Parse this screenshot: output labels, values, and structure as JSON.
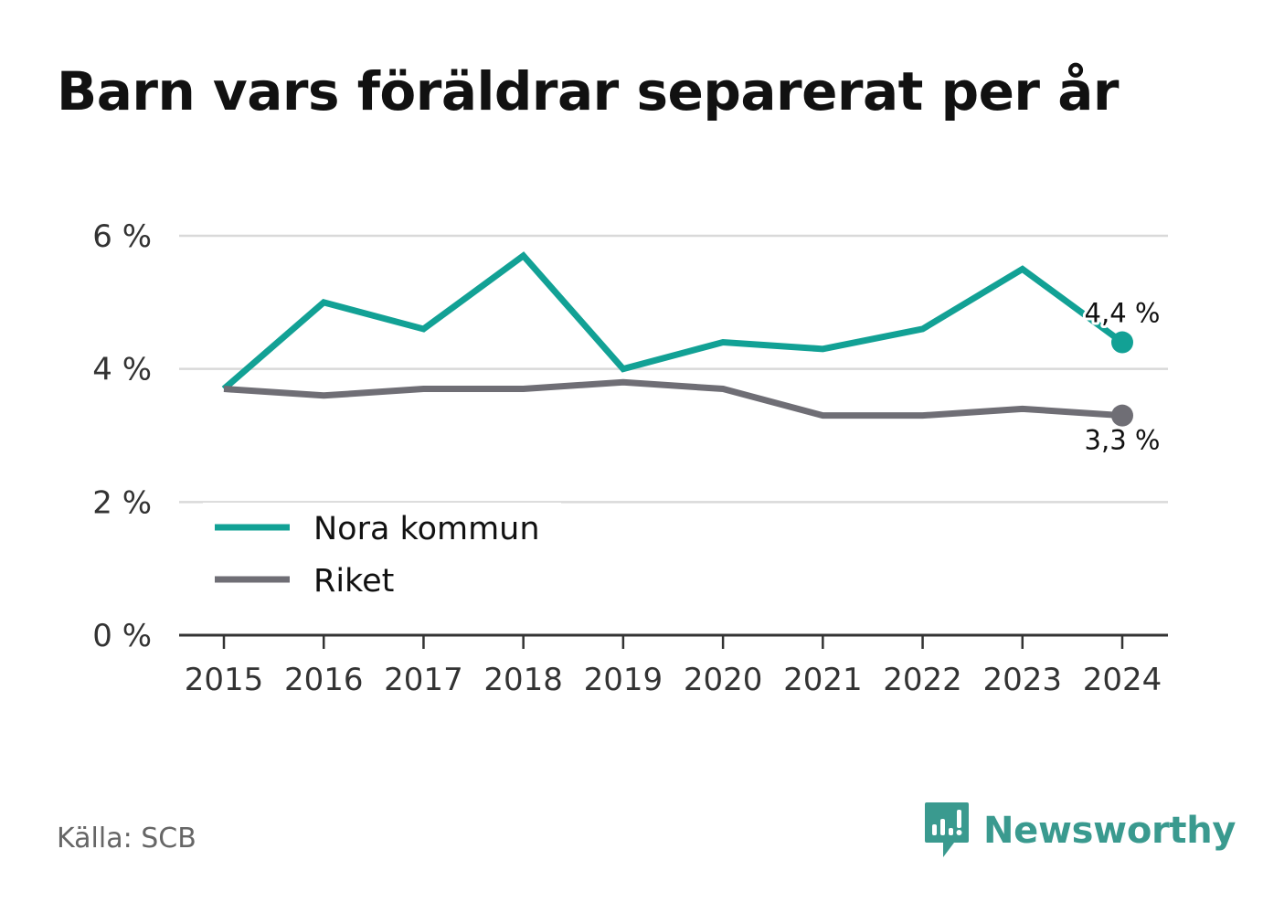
{
  "title": "Barn vars föräldrar separerat per år",
  "source": "Källa: SCB",
  "brand": {
    "name": "Newsworthy",
    "logo_icon": "newsworthy-logo-icon",
    "color": "#3a9a8f"
  },
  "chart_data": {
    "type": "line",
    "title": "Barn vars föräldrar separerat per år",
    "xlabel": "",
    "ylabel": "",
    "x": [
      "2015",
      "2016",
      "2017",
      "2018",
      "2019",
      "2020",
      "2021",
      "2022",
      "2023",
      "2024"
    ],
    "ylim": [
      0,
      6
    ],
    "yticks": [
      0,
      2,
      4,
      6
    ],
    "ytick_labels": [
      "0 %",
      "2 %",
      "4 %",
      "6 %"
    ],
    "grid": true,
    "legend_position": "bottom-left",
    "series": [
      {
        "name": "Nora kommun",
        "color": "#12a195",
        "values": [
          3.7,
          5.0,
          4.6,
          5.7,
          4.0,
          4.4,
          4.3,
          4.6,
          5.5,
          4.4
        ],
        "end_label": "4,4 %"
      },
      {
        "name": "Riket",
        "color": "#6f6e75",
        "values": [
          3.7,
          3.6,
          3.7,
          3.7,
          3.8,
          3.7,
          3.3,
          3.3,
          3.4,
          3.3
        ],
        "end_label": "3,3 %"
      }
    ]
  }
}
